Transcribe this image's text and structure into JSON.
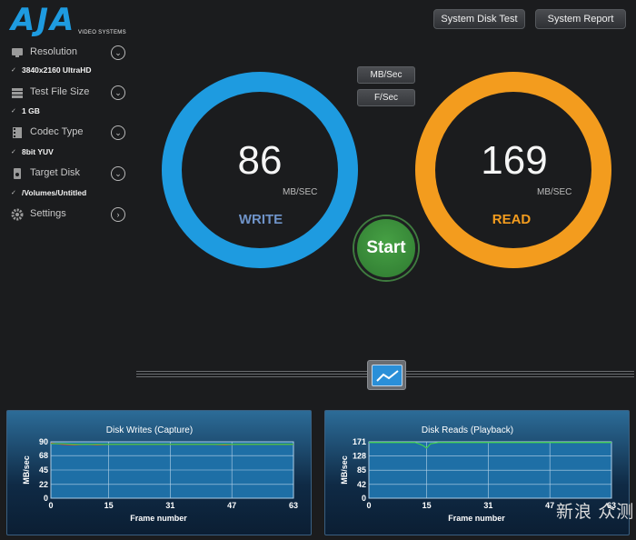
{
  "header": {
    "logo_text": "AJA",
    "logo_subtext": "VIDEO SYSTEMS",
    "buttons": {
      "system_disk_test": "System Disk Test",
      "system_report": "System Report"
    }
  },
  "sidebar": {
    "items": [
      {
        "label": "Resolution",
        "value": "3840x2160 UltraHD",
        "icon": "monitor-icon"
      },
      {
        "label": "Test File Size",
        "value": "1 GB",
        "icon": "stack-icon"
      },
      {
        "label": "Codec Type",
        "value": "8bit YUV",
        "icon": "film-icon"
      },
      {
        "label": "Target Disk",
        "value": "/Volumes/Untitled",
        "icon": "disk-icon"
      },
      {
        "label": "Settings",
        "value": "",
        "icon": "gear-icon"
      }
    ]
  },
  "units": {
    "mb_sec": "MB/Sec",
    "f_sec": "F/Sec"
  },
  "gauges": {
    "write": {
      "value": "86",
      "unit": "MB/SEC",
      "label": "WRITE",
      "color": "#1e9be0"
    },
    "read": {
      "value": "169",
      "unit": "MB/SEC",
      "label": "READ",
      "color": "#f39c1e"
    }
  },
  "start_label": "Start",
  "watermark": "新浪 众测",
  "chart_data": [
    {
      "type": "line",
      "title": "Disk Writes (Capture)",
      "xlabel": "Frame number",
      "ylabel": "MB/sec",
      "xlim": [
        0,
        63
      ],
      "ylim": [
        0,
        90
      ],
      "x_ticks": [
        0,
        15,
        31,
        47,
        63
      ],
      "y_ticks": [
        0,
        22,
        45,
        68,
        90
      ],
      "grid": true,
      "series": [
        {
          "color": "#e03030",
          "x": [
            0,
            3,
            6,
            9,
            12,
            15,
            18,
            21,
            24,
            27,
            30,
            33,
            36,
            39,
            42,
            45,
            48,
            51,
            54,
            57,
            60,
            63
          ],
          "values": [
            88,
            86,
            85,
            86,
            85,
            86,
            86,
            86,
            86,
            86,
            86,
            86,
            86,
            86,
            86,
            85,
            86,
            86,
            86,
            86,
            86,
            86
          ]
        },
        {
          "color": "#3fd04a",
          "x": [
            0,
            3,
            6,
            9,
            12,
            15,
            18,
            21,
            24,
            27,
            30,
            33,
            36,
            39,
            42,
            45,
            48,
            51,
            54,
            57,
            60,
            63
          ],
          "values": [
            87,
            87,
            86,
            86,
            86,
            86,
            86,
            86,
            86,
            86,
            86,
            86,
            86,
            86,
            86,
            86,
            86,
            86,
            86,
            86,
            86,
            86
          ]
        }
      ]
    },
    {
      "type": "line",
      "title": "Disk Reads (Playback)",
      "xlabel": "Frame number",
      "ylabel": "MB/sec",
      "xlim": [
        0,
        63
      ],
      "ylim": [
        0,
        171
      ],
      "x_ticks": [
        0,
        15,
        31,
        47,
        63
      ],
      "y_ticks": [
        0,
        42,
        85,
        128,
        171
      ],
      "grid": true,
      "series": [
        {
          "color": "#3fd04a",
          "x": [
            0,
            3,
            6,
            9,
            12,
            13,
            14,
            15,
            16,
            18,
            21,
            24,
            27,
            30,
            33,
            36,
            39,
            42,
            45,
            48,
            51,
            54,
            57,
            60,
            63
          ],
          "values": [
            169,
            169,
            169,
            169,
            169,
            165,
            160,
            152,
            165,
            169,
            169,
            169,
            169,
            169,
            169,
            169,
            169,
            169,
            169,
            169,
            169,
            169,
            169,
            169,
            169
          ]
        }
      ]
    }
  ]
}
